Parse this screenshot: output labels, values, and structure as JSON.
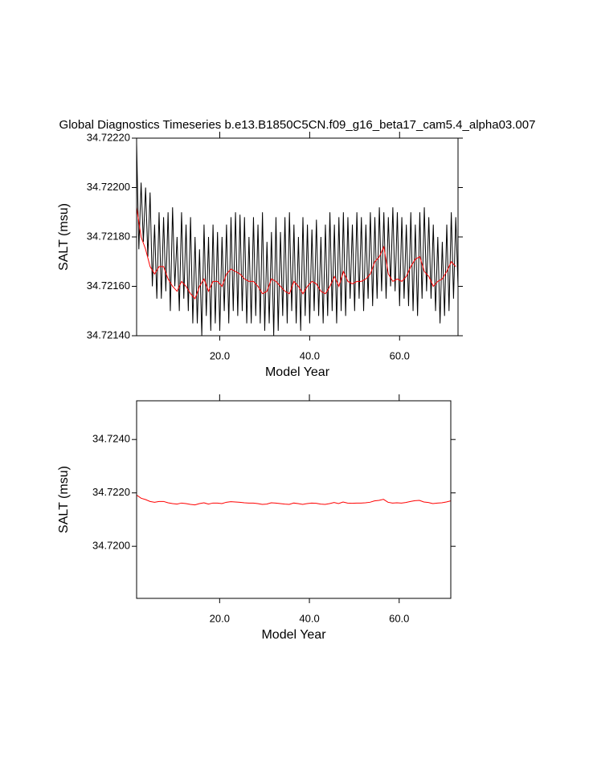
{
  "chart_data": [
    {
      "type": "line",
      "title": "Global Diagnostics Timeseries b.e13.B1850C5CN.f09_g16_beta17_cam5.4_alpha03.007",
      "xlabel": "Model Year",
      "ylabel": "SALT (msu)",
      "xlim": [
        1.5,
        73
      ],
      "ylim": [
        34.7214,
        34.7222
      ],
      "xticks": [
        {
          "value": 20,
          "label": "20.0"
        },
        {
          "value": 40,
          "label": "40.0"
        },
        {
          "value": 60,
          "label": "60.0"
        }
      ],
      "yticks": [
        {
          "value": 34.7214,
          "label": "34.72140"
        },
        {
          "value": 34.7216,
          "label": "34.72160"
        },
        {
          "value": 34.7218,
          "label": "34.72180"
        },
        {
          "value": 34.722,
          "label": "34.72200"
        },
        {
          "value": 34.7222,
          "label": "34.72220"
        }
      ],
      "series": [
        {
          "color": "#000000",
          "x": [
            1.5,
            2,
            2.5,
            3,
            3.5,
            4,
            4.5,
            5,
            5.5,
            6,
            6.5,
            7,
            7.5,
            8,
            8.5,
            9,
            9.5,
            10,
            10.5,
            11,
            11.5,
            12,
            12.5,
            13,
            13.5,
            14,
            14.5,
            15,
            15.5,
            16,
            16.5,
            17,
            17.5,
            18,
            18.5,
            19,
            19.5,
            20,
            20.5,
            21,
            21.5,
            22,
            22.5,
            23,
            23.5,
            24,
            24.5,
            25,
            25.5,
            26,
            26.5,
            27,
            27.5,
            28,
            28.5,
            29,
            29.5,
            30,
            30.5,
            31,
            31.5,
            32,
            32.5,
            33,
            33.5,
            34,
            34.5,
            35,
            35.5,
            36,
            36.5,
            37,
            37.5,
            38,
            38.5,
            39,
            39.5,
            40,
            40.5,
            41,
            41.5,
            42,
            42.5,
            43,
            43.5,
            44,
            44.5,
            45,
            45.5,
            46,
            46.5,
            47,
            47.5,
            48,
            48.5,
            49,
            49.5,
            50,
            50.5,
            51,
            51.5,
            52,
            52.5,
            53,
            53.5,
            54,
            54.5,
            55,
            55.5,
            56,
            56.5,
            57,
            57.5,
            58,
            58.5,
            59,
            59.5,
            60,
            60.5,
            61,
            61.5,
            62,
            62.5,
            63,
            63.5,
            64,
            64.5,
            65,
            65.5,
            66,
            66.5,
            67,
            67.5,
            68,
            68.5,
            69,
            69.5,
            70,
            70.5,
            71,
            71.5,
            72,
            72.5,
            73
          ],
          "values": [
            34.72218,
            34.72175,
            34.72202,
            34.72178,
            34.722,
            34.72172,
            34.72198,
            34.7216,
            34.72185,
            34.72155,
            34.7219,
            34.72155,
            34.72188,
            34.72158,
            34.7219,
            34.7215,
            34.72192,
            34.7216,
            34.7218,
            34.7215,
            34.7219,
            34.72155,
            34.72185,
            34.7215,
            34.72188,
            34.72145,
            34.7218,
            34.72145,
            34.72175,
            34.7214,
            34.72185,
            34.72148,
            34.7218,
            34.72142,
            34.72185,
            34.72145,
            34.72182,
            34.72142,
            34.7218,
            34.7215,
            34.72185,
            34.72145,
            34.72188,
            34.7215,
            34.7219,
            34.72148,
            34.72189,
            34.7215,
            34.72188,
            34.72145,
            34.7218,
            34.72145,
            34.72188,
            34.72148,
            34.72185,
            34.72145,
            34.7219,
            34.72142,
            34.72178,
            34.72145,
            34.72182,
            34.7214,
            34.72188,
            34.72142,
            34.72182,
            34.72148,
            34.72188,
            34.72145,
            34.7219,
            34.7215,
            34.72185,
            34.72145,
            34.7218,
            34.72142,
            34.72188,
            34.72148,
            34.72185,
            34.72145,
            34.72183,
            34.7215,
            34.72187,
            34.72148,
            34.7218,
            34.72145,
            34.72185,
            34.72148,
            34.7219,
            34.7215,
            34.72185,
            34.72145,
            34.72188,
            34.7215,
            34.7219,
            34.72148,
            34.72188,
            34.72155,
            34.72185,
            34.7215,
            34.7219,
            34.72155,
            34.72188,
            34.7215,
            34.72185,
            34.72155,
            34.7219,
            34.72152,
            34.72188,
            34.72155,
            34.72192,
            34.72158,
            34.7219,
            34.72155,
            34.72188,
            34.7216,
            34.72192,
            34.72158,
            34.7219,
            34.72152,
            34.72188,
            34.72155,
            34.72185,
            34.72152,
            34.7219,
            34.7215,
            34.72185,
            34.72148,
            34.7219,
            34.72155,
            34.72192,
            34.72158,
            34.72188,
            34.72155,
            34.72185,
            34.7215,
            34.7218,
            34.72145,
            34.72178,
            34.72148,
            34.72185,
            34.7215,
            34.7219,
            34.72155,
            34.72188,
            34.7216
          ]
        },
        {
          "color": "#ff0000",
          "x": [
            1.5,
            2.5,
            3.5,
            4.5,
            5.5,
            6.5,
            7.5,
            8.5,
            9.5,
            10.5,
            11.5,
            12.5,
            13.5,
            14.5,
            15.5,
            16.5,
            17.5,
            18.5,
            19.5,
            20.5,
            21.5,
            22.5,
            23.5,
            24.5,
            25.5,
            26.5,
            27.5,
            28.5,
            29.5,
            30.5,
            31.5,
            32.5,
            33.5,
            34.5,
            35.5,
            36.5,
            37.5,
            38.5,
            39.5,
            40.5,
            41.5,
            42.5,
            43.5,
            44.5,
            45.5,
            46.5,
            47.5,
            48.5,
            49.5,
            50.5,
            51.5,
            52.5,
            53.5,
            54.5,
            55.5,
            56.5,
            57.5,
            58.5,
            59.5,
            60.5,
            61.5,
            62.5,
            63.5,
            64.5,
            65.5,
            66.5,
            67.5,
            68.5,
            69.5,
            70.5,
            71.5,
            72.5
          ],
          "values": [
            34.72192,
            34.7218,
            34.72175,
            34.72168,
            34.72165,
            34.72168,
            34.72168,
            34.72163,
            34.7216,
            34.72158,
            34.72162,
            34.7216,
            34.72157,
            34.72155,
            34.7216,
            34.72163,
            34.72158,
            34.72162,
            34.72162,
            34.7216,
            34.72165,
            34.72167,
            34.72166,
            34.72165,
            34.72163,
            34.72162,
            34.72162,
            34.7216,
            34.72157,
            34.72158,
            34.72163,
            34.72162,
            34.7216,
            34.72158,
            34.72157,
            34.72162,
            34.7216,
            34.72157,
            34.7216,
            34.72162,
            34.72161,
            34.72158,
            34.72157,
            34.7216,
            34.72164,
            34.7216,
            34.72166,
            34.72162,
            34.72161,
            34.72162,
            34.72162,
            34.72163,
            34.72165,
            34.7217,
            34.72172,
            34.72176,
            34.72165,
            34.72162,
            34.72163,
            34.72162,
            34.72164,
            34.72168,
            34.72171,
            34.72172,
            34.72166,
            34.72164,
            34.7216,
            34.72162,
            34.72163,
            34.72166,
            34.7217,
            34.72168
          ]
        }
      ]
    },
    {
      "type": "line",
      "xlabel": "Model Year",
      "ylabel": "SALT (msu)",
      "xlim": [
        1.5,
        71.5
      ],
      "ylim": [
        34.71805,
        34.72545
      ],
      "xticks": [
        {
          "value": 20,
          "label": "20.0"
        },
        {
          "value": 40,
          "label": "40.0"
        },
        {
          "value": 60,
          "label": "60.0"
        }
      ],
      "yticks": [
        {
          "value": 34.72,
          "label": "34.7200"
        },
        {
          "value": 34.722,
          "label": "34.7220"
        },
        {
          "value": 34.724,
          "label": "34.7240"
        }
      ],
      "series": [
        {
          "color": "#ff0000",
          "x": [
            1.5,
            2.5,
            3.5,
            4.5,
            5.5,
            6.5,
            7.5,
            8.5,
            9.5,
            10.5,
            11.5,
            12.5,
            13.5,
            14.5,
            15.5,
            16.5,
            17.5,
            18.5,
            19.5,
            20.5,
            21.5,
            22.5,
            23.5,
            24.5,
            25.5,
            26.5,
            27.5,
            28.5,
            29.5,
            30.5,
            31.5,
            32.5,
            33.5,
            34.5,
            35.5,
            36.5,
            37.5,
            38.5,
            39.5,
            40.5,
            41.5,
            42.5,
            43.5,
            44.5,
            45.5,
            46.5,
            47.5,
            48.5,
            49.5,
            50.5,
            51.5,
            52.5,
            53.5,
            54.5,
            55.5,
            56.5,
            57.5,
            58.5,
            59.5,
            60.5,
            61.5,
            62.5,
            63.5,
            64.5,
            65.5,
            66.5,
            67.5,
            68.5,
            69.5,
            70.5,
            71.5
          ],
          "values": [
            34.72192,
            34.7218,
            34.72175,
            34.72168,
            34.72165,
            34.72168,
            34.72168,
            34.72163,
            34.7216,
            34.72158,
            34.72162,
            34.7216,
            34.72157,
            34.72155,
            34.7216,
            34.72163,
            34.72158,
            34.72162,
            34.72162,
            34.7216,
            34.72165,
            34.72167,
            34.72166,
            34.72165,
            34.72163,
            34.72162,
            34.72162,
            34.7216,
            34.72157,
            34.72158,
            34.72163,
            34.72162,
            34.7216,
            34.72158,
            34.72157,
            34.72162,
            34.7216,
            34.72157,
            34.7216,
            34.72162,
            34.72161,
            34.72158,
            34.72157,
            34.7216,
            34.72164,
            34.7216,
            34.72166,
            34.72162,
            34.72161,
            34.72162,
            34.72162,
            34.72163,
            34.72165,
            34.7217,
            34.72172,
            34.72176,
            34.72165,
            34.72162,
            34.72163,
            34.72162,
            34.72164,
            34.72168,
            34.72171,
            34.72172,
            34.72166,
            34.72164,
            34.7216,
            34.72162,
            34.72163,
            34.72166,
            34.7217
          ]
        }
      ]
    }
  ]
}
